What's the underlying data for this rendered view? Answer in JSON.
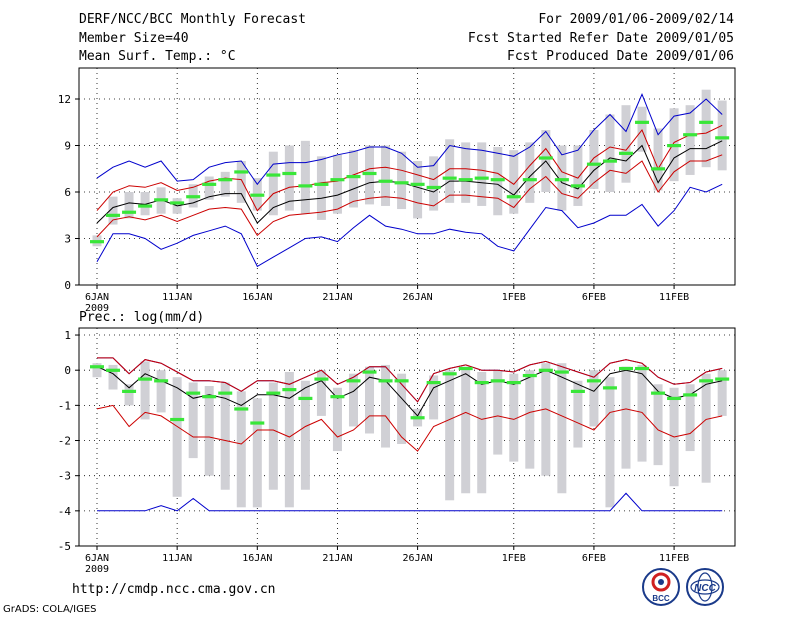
{
  "header": {
    "title": "DERF/NCC/BCC Monthly Forecast",
    "member_size": "Member Size=40",
    "variable": "Mean Surf. Temp.: °C",
    "for_range": "For 2009/01/06-2009/02/14",
    "start_date": "Fcst Started Refer Date 2009/01/05",
    "produced_date": "Fcst Produced Date 2009/01/06"
  },
  "footer": {
    "url": "http://cmdp.ncc.cma.gov.cn",
    "grads": "GrADS: COLA/IGES"
  },
  "logos": {
    "bcc_text": "BCC",
    "ncc_text": "NCC"
  },
  "colors": {
    "box": "#d0d0d5",
    "median": "#39e639",
    "mean": "#000000",
    "inner": "#cc0000",
    "outer": "#0000cc"
  },
  "chart_data": [
    {
      "type": "ensemble-boxplot",
      "title": "Mean Surf. Temp.: °C",
      "days": 40,
      "x_ticks": [
        {
          "day": 1,
          "label": "6JAN"
        },
        {
          "day": 6,
          "label": "11JAN"
        },
        {
          "day": 11,
          "label": "16JAN"
        },
        {
          "day": 16,
          "label": "21JAN"
        },
        {
          "day": 21,
          "label": "26JAN"
        },
        {
          "day": 27,
          "label": "1FEB"
        },
        {
          "day": 32,
          "label": "6FEB"
        },
        {
          "day": 37,
          "label": "11FEB"
        }
      ],
      "year_label": "2009",
      "ylim": [
        0,
        14
      ],
      "y_ticks": [
        0,
        3,
        6,
        9,
        12
      ],
      "series": {
        "mean": [
          4.0,
          5.0,
          5.3,
          5.2,
          5.5,
          5.1,
          5.3,
          5.7,
          5.9,
          5.9,
          4.0,
          5.0,
          5.4,
          5.5,
          5.6,
          5.8,
          6.2,
          6.6,
          6.7,
          6.6,
          6.3,
          6.0,
          6.7,
          6.7,
          6.6,
          6.5,
          5.8,
          7.0,
          8.0,
          6.6,
          6.2,
          7.4,
          8.2,
          8.0,
          9.0,
          6.6,
          8.2,
          8.8,
          8.8,
          9.3
        ],
        "inner_upper": [
          4.8,
          6.0,
          6.4,
          6.3,
          6.6,
          6.1,
          6.3,
          6.7,
          6.9,
          6.8,
          4.8,
          5.9,
          6.3,
          6.4,
          6.6,
          6.7,
          7.1,
          7.5,
          7.6,
          7.4,
          7.1,
          6.8,
          7.5,
          7.5,
          7.4,
          7.2,
          6.5,
          7.7,
          8.8,
          7.3,
          6.9,
          8.2,
          8.9,
          8.7,
          10.0,
          7.5,
          9.2,
          9.7,
          9.8,
          10.3
        ],
        "inner_lower": [
          3.1,
          4.2,
          4.4,
          4.2,
          4.5,
          4.1,
          4.5,
          4.9,
          5.0,
          4.9,
          3.2,
          4.1,
          4.5,
          4.6,
          4.7,
          4.9,
          5.4,
          5.6,
          5.7,
          5.6,
          5.3,
          5.1,
          5.8,
          5.8,
          5.7,
          5.6,
          5.0,
          6.2,
          7.0,
          5.9,
          5.6,
          6.6,
          7.4,
          7.2,
          8.0,
          6.0,
          7.3,
          8.0,
          8.0,
          8.4
        ],
        "outer_upper": [
          6.9,
          7.6,
          8.0,
          7.6,
          8.0,
          6.7,
          6.8,
          7.6,
          7.9,
          8.0,
          6.5,
          7.8,
          7.9,
          7.9,
          8.1,
          8.4,
          8.6,
          8.9,
          8.9,
          8.5,
          7.6,
          7.7,
          9.0,
          8.8,
          8.7,
          8.5,
          8.3,
          8.9,
          9.9,
          8.4,
          8.7,
          10.0,
          11.0,
          9.9,
          12.3,
          9.7,
          10.9,
          11.1,
          12.0,
          11.0
        ],
        "outer_lower": [
          1.5,
          3.3,
          3.3,
          3.0,
          2.3,
          2.7,
          3.2,
          3.5,
          3.8,
          3.3,
          1.2,
          1.8,
          2.4,
          3.0,
          3.1,
          2.8,
          3.7,
          4.5,
          3.8,
          3.6,
          3.3,
          3.3,
          3.6,
          3.4,
          3.3,
          2.5,
          2.2,
          3.6,
          5.0,
          4.8,
          3.7,
          4.0,
          4.5,
          4.5,
          5.2,
          3.8,
          4.8,
          6.3,
          6.0,
          6.5
        ]
      },
      "boxes": {
        "median": [
          2.8,
          4.5,
          4.7,
          5.1,
          5.5,
          5.3,
          5.7,
          6.5,
          6.8,
          7.3,
          5.8,
          7.1,
          7.2,
          6.4,
          6.5,
          6.8,
          7.0,
          7.2,
          6.7,
          6.6,
          6.5,
          6.3,
          6.9,
          6.8,
          6.9,
          6.8,
          5.7,
          6.8,
          8.2,
          6.8,
          6.4,
          7.8,
          8.0,
          8.5,
          10.5,
          7.5,
          9.0,
          9.7,
          10.5,
          9.5
        ],
        "box_high": [
          3.2,
          5.7,
          6.0,
          6.0,
          6.3,
          5.6,
          6.5,
          7.0,
          7.3,
          8.0,
          6.9,
          8.6,
          9.0,
          9.3,
          8.3,
          8.4,
          8.7,
          9.0,
          9.0,
          8.6,
          8.0,
          8.3,
          9.4,
          9.2,
          9.2,
          8.9,
          8.7,
          9.2,
          10.0,
          9.0,
          9.0,
          10.0,
          11.0,
          11.6,
          11.5,
          10.1,
          11.4,
          11.6,
          12.6,
          11.9
        ],
        "box_low": [
          2.5,
          3.9,
          4.3,
          4.5,
          4.6,
          4.6,
          5.0,
          5.5,
          5.7,
          5.3,
          4.8,
          4.5,
          4.8,
          4.6,
          4.2,
          4.6,
          5.0,
          5.2,
          5.1,
          4.9,
          4.3,
          4.8,
          5.3,
          5.3,
          5.1,
          4.5,
          4.6,
          5.3,
          6.0,
          4.8,
          5.1,
          6.2,
          6.0,
          6.6,
          8.6,
          6.1,
          6.7,
          7.1,
          7.6,
          7.4
        ]
      }
    },
    {
      "type": "ensemble-boxplot",
      "title": "Prec.: log(mm/d)",
      "days": 40,
      "x_ticks": [
        {
          "day": 1,
          "label": "6JAN"
        },
        {
          "day": 6,
          "label": "11JAN"
        },
        {
          "day": 11,
          "label": "16JAN"
        },
        {
          "day": 16,
          "label": "21JAN"
        },
        {
          "day": 21,
          "label": "26JAN"
        },
        {
          "day": 27,
          "label": "1FEB"
        },
        {
          "day": 32,
          "label": "6FEB"
        },
        {
          "day": 37,
          "label": "11FEB"
        }
      ],
      "year_label": "2009",
      "ylim": [
        -5,
        1.2
      ],
      "y_ticks": [
        -5,
        -4,
        -3,
        -2,
        -1,
        0,
        1
      ],
      "series": {
        "mean": [
          0.1,
          -0.1,
          -0.5,
          -0.1,
          -0.3,
          -0.5,
          -0.8,
          -0.7,
          -0.8,
          -1.0,
          -0.7,
          -0.7,
          -0.8,
          -0.5,
          -0.3,
          -0.8,
          -0.6,
          -0.2,
          -0.3,
          -0.8,
          -1.3,
          -0.5,
          -0.3,
          -0.1,
          -0.4,
          -0.3,
          -0.4,
          -0.2,
          0.0,
          -0.2,
          -0.4,
          -0.6,
          -0.1,
          0.0,
          -0.1,
          -0.6,
          -0.8,
          -0.7,
          -0.4,
          -0.3
        ],
        "inner_upper": [
          0.35,
          0.35,
          -0.1,
          0.3,
          0.2,
          -0.05,
          -0.3,
          -0.3,
          -0.35,
          -0.6,
          -0.3,
          -0.3,
          -0.4,
          -0.2,
          0.0,
          -0.4,
          -0.2,
          0.1,
          0.1,
          -0.4,
          -0.9,
          -0.1,
          0.05,
          0.15,
          0.0,
          0.0,
          -0.05,
          0.15,
          0.25,
          0.1,
          -0.05,
          -0.2,
          0.2,
          0.3,
          0.2,
          -0.2,
          -0.4,
          -0.35,
          -0.05,
          0.05
        ],
        "inner_lower": [
          -1.1,
          -1.0,
          -1.6,
          -1.2,
          -1.3,
          -1.6,
          -1.9,
          -1.9,
          -2.0,
          -2.1,
          -1.7,
          -1.7,
          -1.9,
          -1.6,
          -1.4,
          -1.9,
          -1.7,
          -1.3,
          -1.3,
          -1.9,
          -2.3,
          -1.6,
          -1.4,
          -1.2,
          -1.4,
          -1.3,
          -1.4,
          -1.2,
          -1.1,
          -1.3,
          -1.5,
          -1.7,
          -1.2,
          -1.1,
          -1.2,
          -1.7,
          -1.9,
          -1.8,
          -1.4,
          -1.3
        ],
        "outer_upper": [
          0.35,
          0.35,
          -0.1,
          0.3,
          0.2,
          -0.05,
          -0.3,
          -0.3,
          -0.35,
          -0.6,
          -0.3,
          -0.3,
          -0.4,
          -0.2,
          0.0,
          -0.4,
          -0.2,
          0.1,
          0.1,
          -0.4,
          -0.9,
          -0.1,
          0.05,
          0.15,
          0.0,
          0.0,
          -0.05,
          0.15,
          0.25,
          0.1,
          -0.05,
          -0.2,
          0.2,
          0.3,
          0.2,
          -0.2,
          -0.4,
          -0.35,
          -0.05,
          0.05
        ],
        "outer_lower": [
          -4.0,
          -4.0,
          -4.0,
          -4.0,
          -3.85,
          -4.0,
          -3.65,
          -4.0,
          -4.0,
          -4.0,
          -4.0,
          -4.0,
          -4.0,
          -4.0,
          -4.0,
          -4.0,
          -4.0,
          -4.0,
          -4.0,
          -4.0,
          -4.0,
          -4.0,
          -4.0,
          -4.0,
          -4.0,
          -4.0,
          -4.0,
          -4.0,
          -4.0,
          -4.0,
          -4.0,
          -4.0,
          -4.0,
          -3.5,
          -4.0,
          -4.0,
          -4.0,
          -4.0,
          -4.0,
          -4.0
        ]
      },
      "boxes": {
        "median": [
          0.1,
          0.0,
          -0.6,
          -0.25,
          -0.3,
          -1.4,
          -0.65,
          -0.75,
          -0.65,
          -1.1,
          -1.5,
          -0.65,
          -0.55,
          -0.8,
          -0.25,
          -0.75,
          -0.3,
          -0.05,
          -0.3,
          -0.3,
          -1.35,
          -0.35,
          -0.1,
          0.05,
          -0.35,
          -0.3,
          -0.35,
          -0.15,
          0.0,
          -0.05,
          -0.6,
          -0.3,
          -0.5,
          0.05,
          0.05,
          -0.65,
          -0.8,
          -0.7,
          -0.3,
          -0.25
        ],
        "box_high": [
          0.2,
          0.15,
          -0.4,
          0.25,
          0.0,
          -0.2,
          -0.35,
          -0.45,
          -0.35,
          -0.6,
          -0.8,
          -0.35,
          -0.05,
          -0.3,
          0.0,
          -0.5,
          -0.1,
          0.1,
          0.15,
          -0.1,
          -1.1,
          -0.15,
          0.0,
          0.1,
          -0.05,
          0.0,
          -0.1,
          0.0,
          0.2,
          0.2,
          -0.3,
          0.0,
          -0.2,
          0.1,
          0.15,
          -0.4,
          -0.5,
          -0.4,
          -0.1,
          0.0
        ],
        "box_low": [
          -0.2,
          -0.55,
          -1.0,
          -1.4,
          -1.2,
          -3.6,
          -2.5,
          -3.0,
          -3.4,
          -3.9,
          -3.9,
          -3.4,
          -3.9,
          -3.4,
          -1.3,
          -2.3,
          -1.6,
          -1.8,
          -2.2,
          -2.1,
          -1.6,
          -1.4,
          -3.7,
          -3.5,
          -3.5,
          -2.4,
          -2.6,
          -2.8,
          -3.0,
          -3.5,
          -2.2,
          -1.6,
          -3.9,
          -2.8,
          -2.6,
          -2.7,
          -3.3,
          -2.3,
          -3.2,
          -1.3
        ]
      }
    }
  ]
}
